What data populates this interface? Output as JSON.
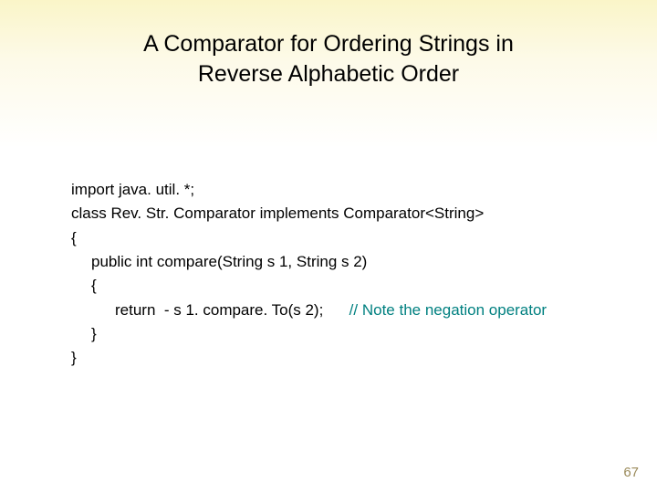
{
  "title": {
    "line1": "A Comparator for Ordering Strings in",
    "line2": "Reverse Alphabetic Order",
    "fontsize": 25,
    "color": "#000000"
  },
  "code": {
    "fontsize": 17,
    "text_color": "#000000",
    "comment_color": "#008080",
    "lines": [
      {
        "indent": 0,
        "text": "import java. util. *;"
      },
      {
        "indent": 0,
        "text": "class Rev. Str. Comparator implements Comparator<String>"
      },
      {
        "indent": 0,
        "text": "{"
      },
      {
        "indent": 1,
        "text": "public int compare(String s 1, String s 2)"
      },
      {
        "indent": 1,
        "text": "{"
      },
      {
        "indent": 2,
        "text": "return  - s 1. compare. To(s 2);",
        "comment": "// Note the negation operator"
      },
      {
        "indent": 1,
        "text": "}"
      },
      {
        "indent": 0,
        "text": "}"
      }
    ]
  },
  "page_number": "67",
  "page_number_color": "#9a8a5a",
  "background": {
    "gradient_top": "#faf5c8",
    "gradient_bottom": "#ffffff"
  }
}
